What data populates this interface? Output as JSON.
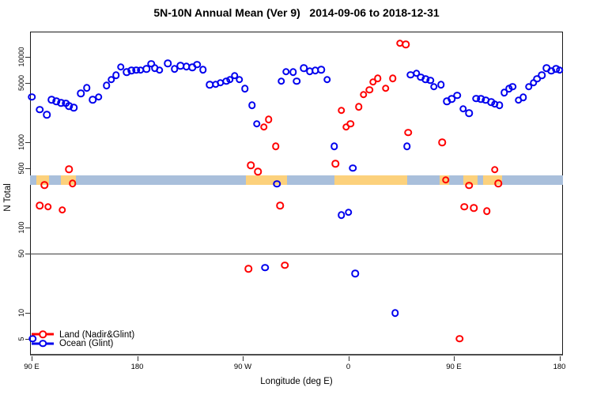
{
  "chart_data": {
    "type": "scatter",
    "title": "5N-10N Annual Mean (Ver 9)   2014-09-06 to 2018-12-31",
    "xlabel": "Longitude (deg E)",
    "ylabel": "N Total",
    "y_scale": "log",
    "ylim": [
      4,
      16000
    ],
    "x_axis_wrapped_deg_range": [
      90,
      540
    ],
    "x_ticks": [
      {
        "deg": 90,
        "label": "90 E"
      },
      {
        "deg": 180,
        "label": "180"
      },
      {
        "deg": 270,
        "label": "90 W"
      },
      {
        "deg": 360,
        "label": "0"
      },
      {
        "deg": 450,
        "label": "90 E"
      },
      {
        "deg": 540,
        "label": "180"
      }
    ],
    "y_ticks": [
      10000,
      5000,
      1000,
      500,
      100,
      50,
      10,
      5
    ],
    "reference_line_n": 50,
    "land_ocean_strip": {
      "ocean_color": "#a9bfdb",
      "land_color": "#fcd17c",
      "land_segments_deg": [
        [
          94,
          105
        ],
        [
          115,
          128
        ],
        [
          273,
          308
        ],
        [
          348,
          410
        ],
        [
          438,
          446
        ],
        [
          458,
          470
        ],
        [
          475,
          491
        ]
      ]
    },
    "series": [
      {
        "name": "Land (Nadir&Glint)",
        "color": "#ff0000",
        "points": [
          [
            97,
            180
          ],
          [
            101,
            315
          ],
          [
            104,
            175
          ],
          [
            116,
            160
          ],
          [
            122,
            480
          ],
          [
            125,
            330
          ],
          [
            275,
            33
          ],
          [
            277,
            535
          ],
          [
            283,
            450
          ],
          [
            288,
            1500
          ],
          [
            292,
            1850
          ],
          [
            298,
            890
          ],
          [
            302,
            180
          ],
          [
            306,
            36
          ],
          [
            349,
            560
          ],
          [
            354,
            2350
          ],
          [
            358,
            1500
          ],
          [
            362,
            1650
          ],
          [
            369,
            2600
          ],
          [
            373,
            3600
          ],
          [
            378,
            4100
          ],
          [
            381,
            5100
          ],
          [
            385,
            5600
          ],
          [
            392,
            4300
          ],
          [
            398,
            5600
          ],
          [
            404,
            14500
          ],
          [
            409,
            14000
          ],
          [
            411,
            1300
          ],
          [
            440,
            1000
          ],
          [
            443,
            360
          ],
          [
            455,
            5
          ],
          [
            459,
            175
          ],
          [
            463,
            310
          ],
          [
            467,
            170
          ],
          [
            478,
            155
          ],
          [
            485,
            475
          ],
          [
            488,
            330
          ]
        ]
      },
      {
        "name": "Ocean (Glint)",
        "color": "#0000ee",
        "points": [
          [
            90,
            3400
          ],
          [
            91,
            5
          ],
          [
            97,
            2400
          ],
          [
            103,
            2100
          ],
          [
            107,
            3150
          ],
          [
            111,
            3000
          ],
          [
            115,
            2900
          ],
          [
            119,
            2850
          ],
          [
            122,
            2650
          ],
          [
            126,
            2550
          ],
          [
            132,
            3750
          ],
          [
            137,
            4350
          ],
          [
            142,
            3150
          ],
          [
            147,
            3400
          ],
          [
            154,
            4600
          ],
          [
            158,
            5400
          ],
          [
            162,
            6100
          ],
          [
            166,
            7600
          ],
          [
            171,
            6600
          ],
          [
            175,
            6900
          ],
          [
            179,
            7000
          ],
          [
            183,
            7000
          ],
          [
            188,
            7200
          ],
          [
            192,
            8300
          ],
          [
            195,
            7400
          ],
          [
            199,
            7000
          ],
          [
            206,
            8400
          ],
          [
            212,
            7200
          ],
          [
            217,
            7900
          ],
          [
            222,
            7700
          ],
          [
            227,
            7500
          ],
          [
            231,
            8100
          ],
          [
            236,
            7100
          ],
          [
            242,
            4700
          ],
          [
            247,
            4750
          ],
          [
            251,
            5000
          ],
          [
            256,
            5200
          ],
          [
            259,
            5400
          ],
          [
            263,
            6000
          ],
          [
            267,
            5400
          ],
          [
            272,
            4250
          ],
          [
            278,
            2700
          ],
          [
            282,
            1650
          ],
          [
            289,
            34
          ],
          [
            299,
            325
          ],
          [
            303,
            5200
          ],
          [
            307,
            6700
          ],
          [
            313,
            6650
          ],
          [
            316,
            5200
          ],
          [
            322,
            7400
          ],
          [
            327,
            6800
          ],
          [
            332,
            6900
          ],
          [
            337,
            7050
          ],
          [
            342,
            5400
          ],
          [
            348,
            890
          ],
          [
            354,
            140
          ],
          [
            360,
            150
          ],
          [
            364,
            500
          ],
          [
            366,
            29
          ],
          [
            400,
            10
          ],
          [
            410,
            890
          ],
          [
            413,
            6150
          ],
          [
            418,
            6400
          ],
          [
            422,
            5800
          ],
          [
            426,
            5500
          ],
          [
            430,
            5300
          ],
          [
            433,
            4450
          ],
          [
            439,
            4700
          ],
          [
            444,
            3000
          ],
          [
            448,
            3200
          ],
          [
            453,
            3550
          ],
          [
            458,
            2450
          ],
          [
            463,
            2200
          ],
          [
            469,
            3250
          ],
          [
            473,
            3200
          ],
          [
            477,
            3100
          ],
          [
            482,
            2950
          ],
          [
            485,
            2800
          ],
          [
            489,
            2700
          ],
          [
            493,
            3800
          ],
          [
            497,
            4250
          ],
          [
            500,
            4450
          ],
          [
            505,
            3100
          ],
          [
            509,
            3350
          ],
          [
            514,
            4450
          ],
          [
            518,
            5000
          ],
          [
            521,
            5550
          ],
          [
            525,
            6100
          ],
          [
            529,
            7400
          ],
          [
            533,
            6850
          ],
          [
            537,
            7200
          ],
          [
            540,
            7000
          ]
        ]
      }
    ],
    "legend": {
      "position": "bottom-left",
      "entries": [
        {
          "label": "Land (Nadir&Glint)",
          "color": "#ff0000"
        },
        {
          "label": "Ocean (Glint)",
          "color": "#0000ee"
        }
      ]
    }
  }
}
